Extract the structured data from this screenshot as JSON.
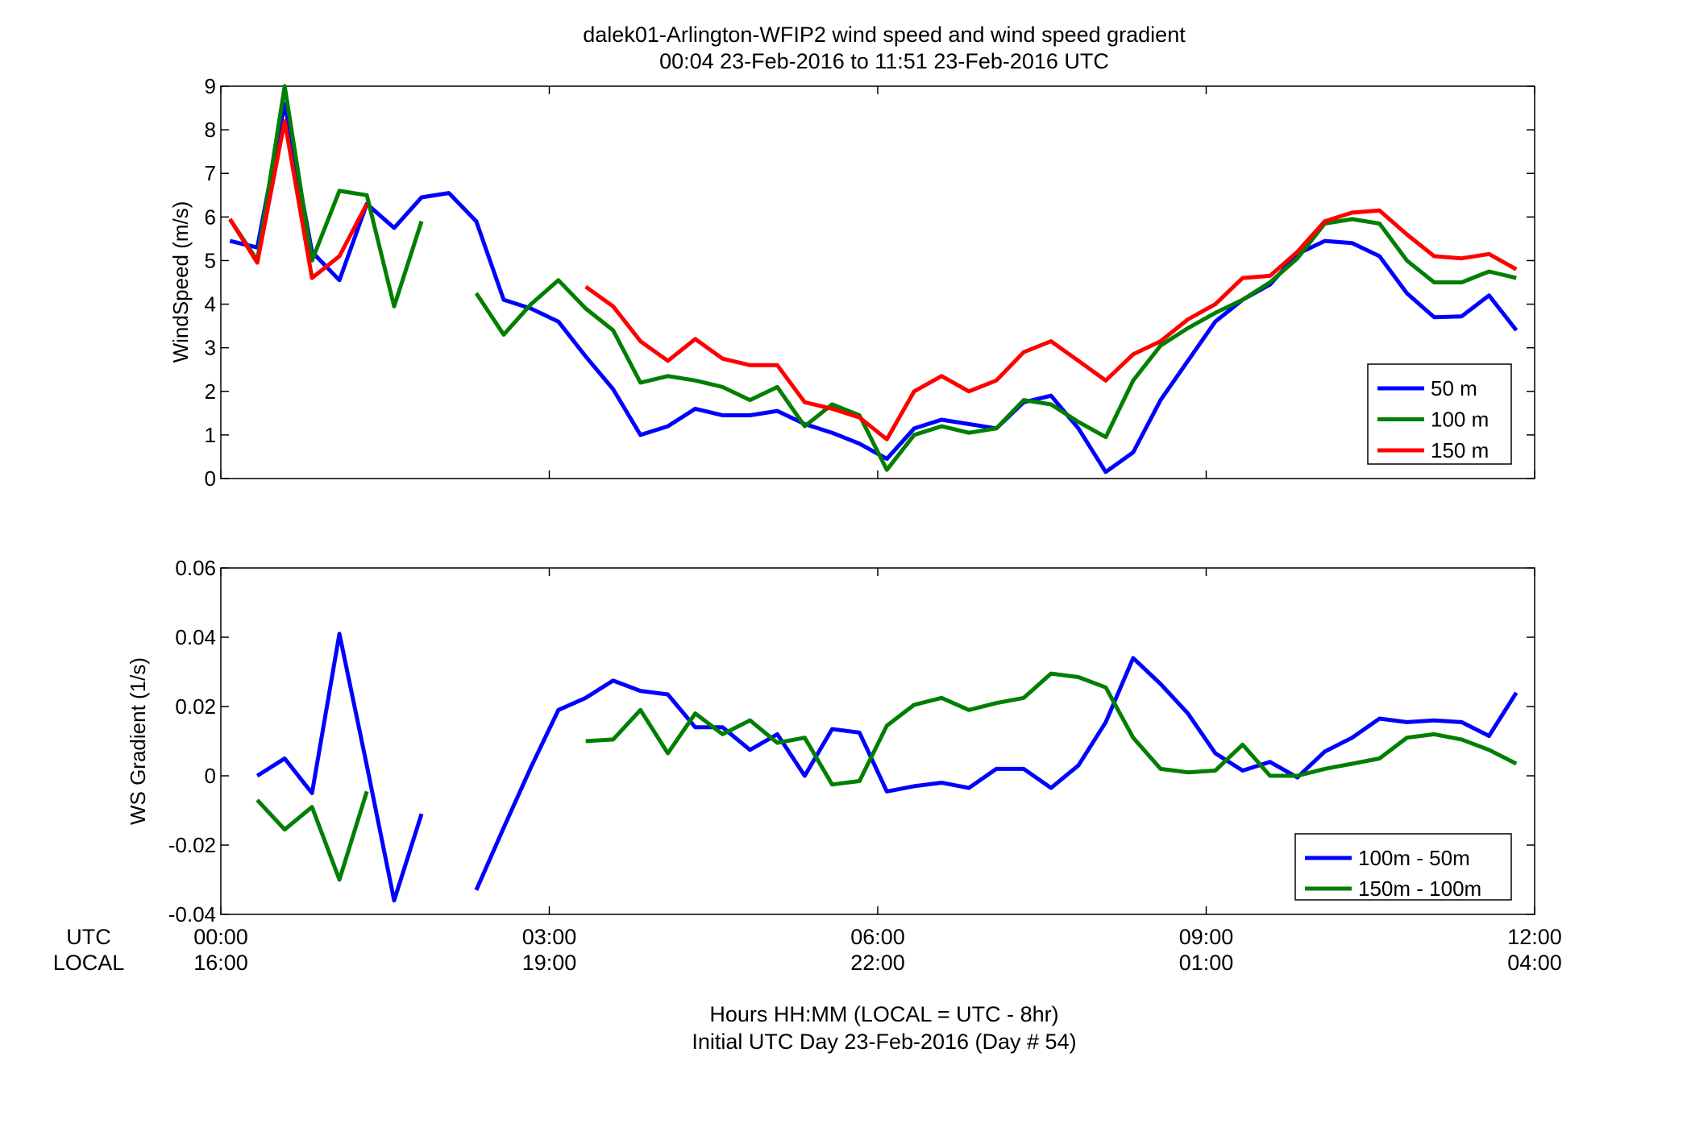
{
  "title_line1": "dalek01-Arlington-WFIP2  wind speed and wind speed gradient",
  "title_line2": "00:04 23-Feb-2016 to 11:51 23-Feb-2016  UTC",
  "row_labels": {
    "utc": "UTC",
    "local": "LOCAL"
  },
  "xticks": [
    {
      "hour": 0,
      "utc": "00:00",
      "local": "16:00"
    },
    {
      "hour": 3,
      "utc": "03:00",
      "local": "19:00"
    },
    {
      "hour": 6,
      "utc": "06:00",
      "local": "22:00"
    },
    {
      "hour": 9,
      "utc": "09:00",
      "local": "01:00"
    },
    {
      "hour": 12,
      "utc": "12:00",
      "local": "04:00"
    }
  ],
  "xlabel_line1": "Hours HH:MM  (LOCAL = UTC - 8hr)",
  "xlabel_line2": "Initial UTC Day 23-Feb-2016 (Day # 54)",
  "colors": {
    "blue": "#0000ff",
    "green": "#007f00",
    "red": "#ff0000"
  },
  "chart_data": [
    {
      "type": "line",
      "ylabel": "WindSpeed (m/s)",
      "xlim": [
        0,
        12
      ],
      "ylim": [
        0,
        9
      ],
      "yticks": [
        0,
        1,
        2,
        3,
        4,
        5,
        6,
        7,
        8,
        9
      ],
      "legend_position": "bottom-right",
      "x": [
        0.083,
        0.333,
        0.583,
        0.833,
        1.083,
        1.333,
        1.583,
        1.833,
        2.083,
        2.333,
        2.583,
        2.833,
        3.083,
        3.333,
        3.583,
        3.833,
        4.083,
        4.333,
        4.583,
        4.833,
        5.083,
        5.333,
        5.583,
        5.833,
        6.083,
        6.333,
        6.583,
        6.833,
        7.083,
        7.333,
        7.583,
        7.833,
        8.083,
        8.333,
        8.583,
        8.833,
        9.083,
        9.333,
        9.583,
        9.833,
        10.083,
        10.333,
        10.583,
        10.833,
        11.083,
        11.333,
        11.583,
        11.833
      ],
      "series": [
        {
          "name": "50 m",
          "color": "#0000ff",
          "values": [
            5.45,
            5.3,
            8.6,
            5.2,
            4.55,
            6.3,
            5.75,
            6.45,
            6.55,
            5.9,
            4.1,
            3.9,
            3.6,
            2.8,
            2.05,
            1.0,
            1.2,
            1.6,
            1.45,
            1.45,
            1.55,
            1.25,
            1.05,
            0.8,
            0.45,
            1.15,
            1.35,
            1.25,
            1.15,
            1.75,
            1.9,
            1.15,
            0.15,
            0.6,
            1.8,
            2.7,
            3.6,
            4.1,
            4.45,
            5.15,
            5.45,
            5.4,
            5.1,
            4.25,
            3.7,
            3.72,
            4.2,
            3.4
          ]
        },
        {
          "name": "100 m",
          "color": "#007f00",
          "values": [
            5.95,
            5.0,
            9.0,
            5.0,
            6.6,
            6.5,
            3.95,
            5.9,
            null,
            4.25,
            3.3,
            4.0,
            4.55,
            3.9,
            3.4,
            2.2,
            2.35,
            2.25,
            2.1,
            1.8,
            2.1,
            1.2,
            1.7,
            1.45,
            0.2,
            1.0,
            1.2,
            1.05,
            1.15,
            1.8,
            1.7,
            1.3,
            0.95,
            2.25,
            3.05,
            3.45,
            3.8,
            4.1,
            4.5,
            5.05,
            5.85,
            5.95,
            5.85,
            5.0,
            4.5,
            4.5,
            4.75,
            4.6
          ]
        },
        {
          "name": "150 m",
          "color": "#ff0000",
          "values": [
            5.95,
            4.95,
            8.2,
            4.6,
            5.1,
            6.3,
            null,
            null,
            null,
            null,
            null,
            null,
            null,
            4.4,
            3.95,
            3.15,
            2.7,
            3.2,
            2.75,
            2.6,
            2.6,
            1.75,
            1.6,
            1.4,
            0.9,
            2.0,
            2.35,
            2.0,
            2.25,
            2.9,
            3.15,
            2.7,
            2.25,
            2.85,
            3.15,
            3.65,
            4.0,
            4.6,
            4.65,
            5.2,
            5.9,
            6.1,
            6.15,
            5.6,
            5.1,
            5.05,
            5.15,
            4.8
          ]
        }
      ]
    },
    {
      "type": "line",
      "ylabel": "WS Gradient (1/s)",
      "xlim": [
        0,
        12
      ],
      "ylim": [
        -0.04,
        0.06
      ],
      "yticks": [
        -0.04,
        -0.02,
        0,
        0.02,
        0.04,
        0.06
      ],
      "ytick_labels": [
        "-0.04",
        "-0.02",
        "0",
        "0.02",
        "0.04",
        "0.06"
      ],
      "legend_position": "bottom-right",
      "x": [
        0.333,
        0.583,
        0.833,
        1.083,
        1.333,
        1.583,
        1.833,
        2.083,
        2.333,
        2.583,
        2.833,
        3.083,
        3.333,
        3.583,
        3.833,
        4.083,
        4.333,
        4.583,
        4.833,
        5.083,
        5.333,
        5.583,
        5.833,
        6.083,
        6.333,
        6.583,
        6.833,
        7.083,
        7.333,
        7.583,
        7.833,
        8.083,
        8.333,
        8.583,
        8.833,
        9.083,
        9.333,
        9.583,
        9.833,
        10.083,
        10.333,
        10.583,
        10.833,
        11.083,
        11.333,
        11.583,
        11.833
      ],
      "series": [
        {
          "name": "100m - 50m",
          "color": "#0000ff",
          "values": [
            0.0,
            0.005,
            -0.005,
            0.041,
            0.003,
            -0.036,
            -0.011,
            null,
            -0.033,
            -0.015,
            0.0025,
            0.019,
            0.0225,
            0.0275,
            0.0245,
            0.0235,
            0.014,
            0.014,
            0.0075,
            0.012,
            0.0,
            0.0135,
            0.0125,
            -0.0045,
            -0.003,
            -0.002,
            -0.0035,
            0.002,
            0.002,
            -0.0035,
            0.003,
            0.0155,
            0.034,
            0.0265,
            0.018,
            0.0065,
            0.0015,
            0.004,
            -0.0005,
            0.007,
            0.011,
            0.0165,
            0.0155,
            0.016,
            0.0155,
            0.0115,
            0.024
          ]
        },
        {
          "name": "150m - 100m",
          "color": "#007f00",
          "values": [
            -0.007,
            -0.0155,
            -0.009,
            -0.03,
            -0.0045,
            null,
            null,
            null,
            null,
            null,
            null,
            null,
            0.01,
            0.0105,
            0.019,
            0.0065,
            0.018,
            0.012,
            0.016,
            0.0095,
            0.011,
            -0.0025,
            -0.0015,
            0.0145,
            0.0205,
            0.0225,
            0.019,
            0.021,
            0.0225,
            0.0295,
            0.0285,
            0.0255,
            0.011,
            0.002,
            0.001,
            0.0015,
            0.009,
            0.0,
            0.0,
            0.002,
            0.0035,
            0.005,
            0.011,
            0.012,
            0.0105,
            0.0075,
            0.0035
          ]
        }
      ]
    }
  ]
}
